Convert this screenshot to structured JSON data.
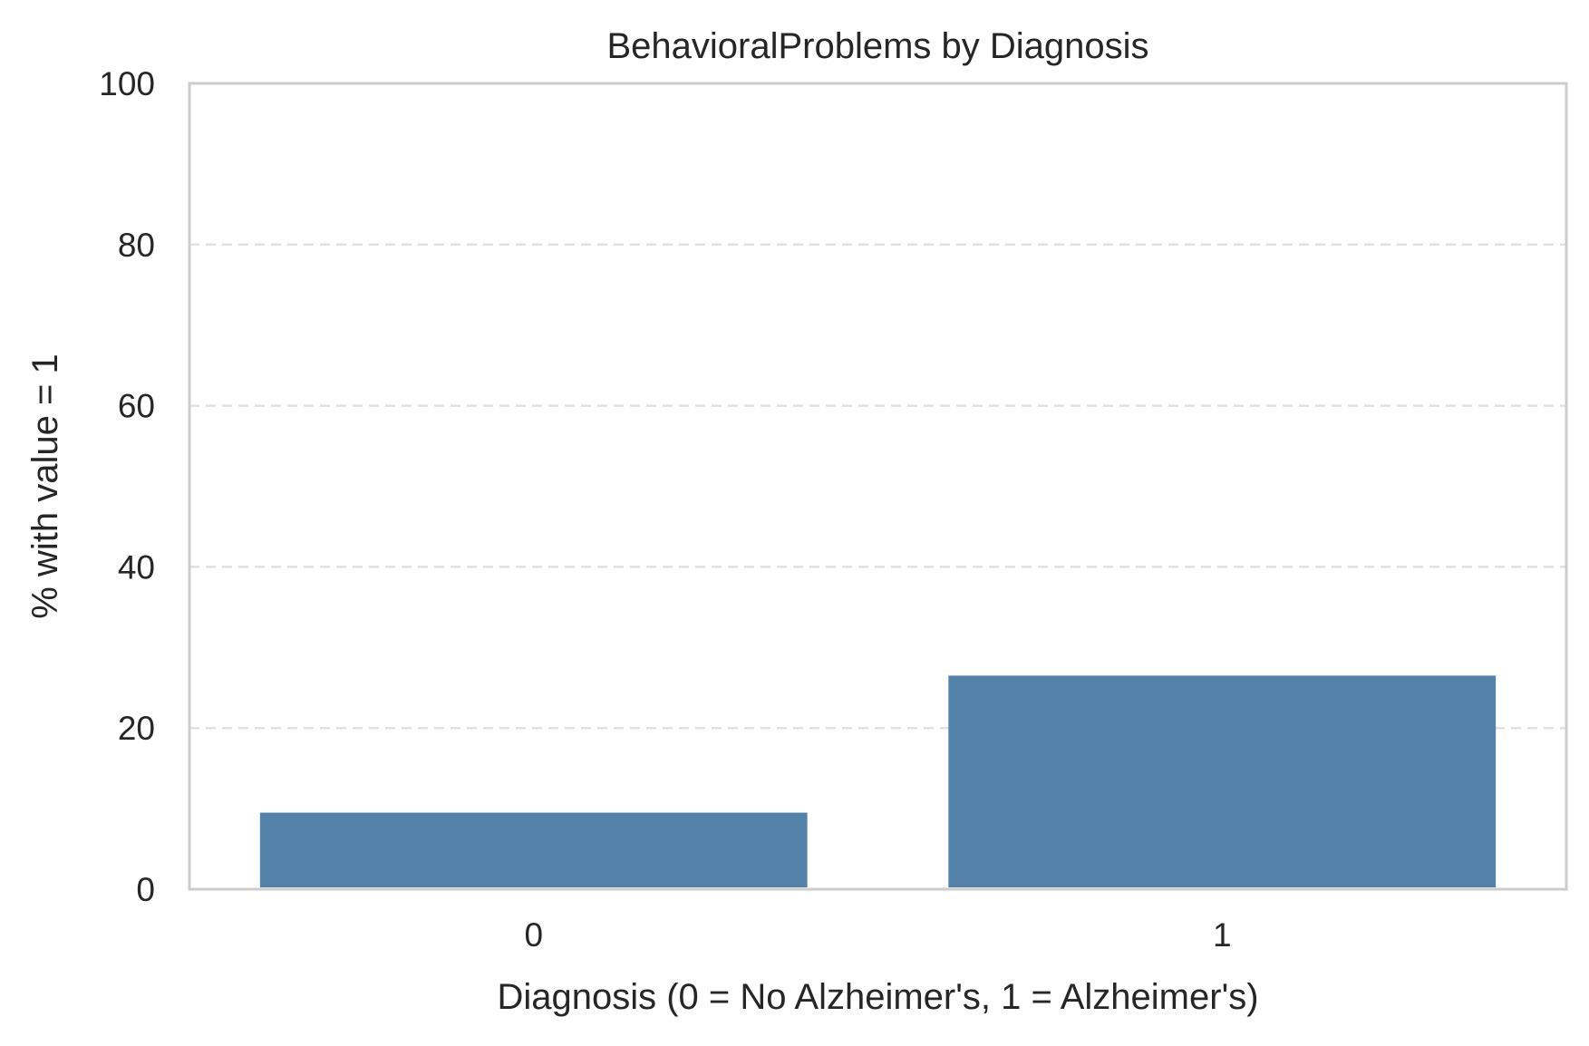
{
  "chart_data": {
    "type": "bar",
    "title": "BehavioralProblems by Diagnosis",
    "xlabel": "Diagnosis (0 = No Alzheimer's, 1 = Alzheimer's)",
    "ylabel": "% with value = 1",
    "categories": [
      "0",
      "1"
    ],
    "values": [
      9.5,
      26.5
    ],
    "ylim": [
      0,
      100
    ],
    "yticks": [
      0,
      20,
      40,
      60,
      80,
      100
    ],
    "grid": "horizontal dashed",
    "bar_color": "#5481a8",
    "grid_color": "#e1e1e1",
    "frame_color": "#cccccc"
  }
}
